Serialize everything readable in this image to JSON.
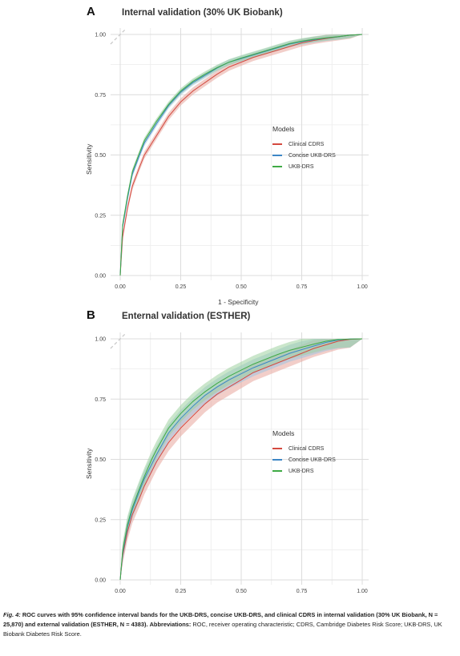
{
  "chart_data": [
    {
      "type": "line",
      "panel": "A",
      "title": "Internal validation (30% UK Biobank)",
      "xlabel": "1 - Specificity",
      "ylabel": "Sensitivity",
      "xlim": [
        0,
        1
      ],
      "ylim": [
        0,
        1
      ],
      "x_ticks": [
        "0.00",
        "0.25",
        "0.50",
        "0.75",
        "1.00"
      ],
      "y_ticks": [
        "0.00",
        "0.25",
        "0.50",
        "0.75",
        "1.00"
      ],
      "grid": true,
      "reference_line": "dashed diagonal",
      "legend": {
        "title": "Models",
        "position": "right"
      },
      "x": [
        0,
        0.01,
        0.03,
        0.05,
        0.08,
        0.1,
        0.15,
        0.2,
        0.25,
        0.3,
        0.35,
        0.4,
        0.45,
        0.5,
        0.55,
        0.6,
        0.65,
        0.7,
        0.75,
        0.8,
        0.85,
        0.9,
        0.95,
        1.0
      ],
      "series": [
        {
          "name": "Clinical CDRS",
          "color": "#d4493f",
          "band_color": "#e8a59c",
          "values": [
            0,
            0.16,
            0.28,
            0.37,
            0.45,
            0.5,
            0.58,
            0.66,
            0.72,
            0.765,
            0.8,
            0.835,
            0.865,
            0.885,
            0.905,
            0.92,
            0.935,
            0.95,
            0.965,
            0.975,
            0.983,
            0.99,
            0.997,
            1.0
          ],
          "ci": 0.015
        },
        {
          "name": "Concise UKB-DRS",
          "color": "#3d86c6",
          "band_color": "#9fc3e0",
          "values": [
            0,
            0.2,
            0.32,
            0.42,
            0.5,
            0.55,
            0.63,
            0.705,
            0.76,
            0.8,
            0.83,
            0.86,
            0.885,
            0.9,
            0.915,
            0.93,
            0.945,
            0.96,
            0.97,
            0.978,
            0.985,
            0.99,
            0.997,
            1.0
          ],
          "ci": 0.012
        },
        {
          "name": "UKB-DRS",
          "color": "#3faa45",
          "band_color": "#9fd2a0",
          "values": [
            0,
            0.21,
            0.33,
            0.43,
            0.51,
            0.56,
            0.64,
            0.71,
            0.765,
            0.805,
            0.835,
            0.862,
            0.885,
            0.902,
            0.917,
            0.932,
            0.947,
            0.962,
            0.972,
            0.98,
            0.986,
            0.991,
            0.997,
            1.0
          ],
          "ci": 0.012
        }
      ]
    },
    {
      "type": "line",
      "panel": "B",
      "title": "Enternal validation (ESTHER)",
      "xlabel": "1 - Specificity",
      "ylabel": "Sensitivity",
      "xlim": [
        0,
        1
      ],
      "ylim": [
        0,
        1
      ],
      "x_ticks": [
        "0.00",
        "0.25",
        "0.50",
        "0.75",
        "1.00"
      ],
      "y_ticks": [
        "0.00",
        "0.25",
        "0.50",
        "0.75",
        "1.00"
      ],
      "grid": true,
      "reference_line": "dashed diagonal",
      "legend": {
        "title": "Models",
        "position": "right"
      },
      "x": [
        0,
        0.01,
        0.03,
        0.05,
        0.08,
        0.1,
        0.13,
        0.15,
        0.2,
        0.25,
        0.3,
        0.35,
        0.4,
        0.45,
        0.5,
        0.55,
        0.6,
        0.65,
        0.7,
        0.75,
        0.8,
        0.85,
        0.9,
        0.95,
        1.0
      ],
      "series": [
        {
          "name": "Clinical CDRS",
          "color": "#d4493f",
          "band_color": "#e8a59c",
          "values": [
            0,
            0.1,
            0.2,
            0.27,
            0.34,
            0.39,
            0.45,
            0.49,
            0.57,
            0.63,
            0.68,
            0.73,
            0.77,
            0.8,
            0.83,
            0.86,
            0.88,
            0.9,
            0.92,
            0.94,
            0.96,
            0.975,
            0.99,
            0.998,
            1.0
          ],
          "ci": 0.035
        },
        {
          "name": "Concise UKB-DRS",
          "color": "#3d86c6",
          "band_color": "#9fc3e0",
          "values": [
            0,
            0.11,
            0.22,
            0.29,
            0.37,
            0.42,
            0.48,
            0.52,
            0.61,
            0.67,
            0.72,
            0.765,
            0.8,
            0.83,
            0.855,
            0.88,
            0.9,
            0.92,
            0.94,
            0.955,
            0.97,
            0.985,
            0.995,
            0.999,
            1.0
          ],
          "ci": 0.035
        },
        {
          "name": "UKB-DRS",
          "color": "#3faa45",
          "band_color": "#9fd2a0",
          "values": [
            0,
            0.12,
            0.23,
            0.3,
            0.38,
            0.43,
            0.5,
            0.54,
            0.63,
            0.69,
            0.74,
            0.78,
            0.815,
            0.845,
            0.87,
            0.895,
            0.915,
            0.935,
            0.952,
            0.965,
            0.978,
            0.99,
            0.997,
            0.999,
            1.0
          ],
          "ci": 0.035
        }
      ]
    }
  ],
  "panels": {
    "A": {
      "letter": "A"
    },
    "B": {
      "letter": "B"
    }
  },
  "caption": {
    "fig_label": "Fig. 4:",
    "bold_text": "ROC curves with 95% confidence interval bands for the UKB-DRS, concise UKB-DRS, and clinical CDRS in internal validation (30% UK Biobank, N = 25,870) and external validation (ESTHER, N = 4383).",
    "abbrev_label": "Abbreviations:",
    "abbrev_text": "ROC, receiver operating characteristic; CDRS, Cambridge Diabetes Risk Score; UKB-DRS, UK Biobank Diabetes Risk Score."
  }
}
